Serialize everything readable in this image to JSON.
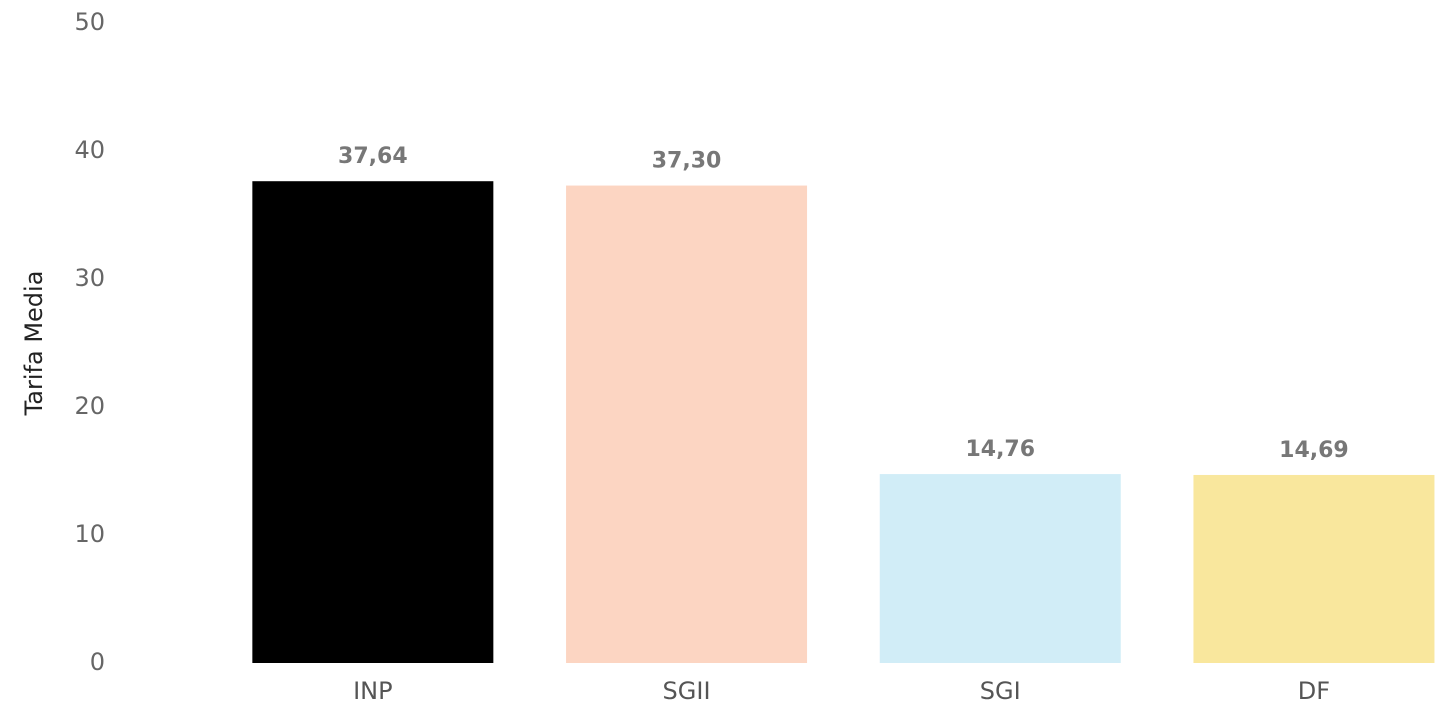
{
  "chart_data": {
    "type": "bar",
    "ylabel": "Tarifa Media",
    "categories": [
      "INP",
      "SGII",
      "SGI",
      "DF"
    ],
    "values": [
      37.64,
      37.3,
      14.76,
      14.69
    ],
    "value_labels": [
      "37,64",
      "37,30",
      "14,76",
      "14,69"
    ],
    "colors": [
      "#000000",
      "#fcd5c2",
      "#d1edf7",
      "#f9e79d"
    ],
    "ylim": [
      0,
      50
    ],
    "yticks": [
      0,
      10,
      20,
      30,
      40,
      50
    ],
    "grid": false
  }
}
